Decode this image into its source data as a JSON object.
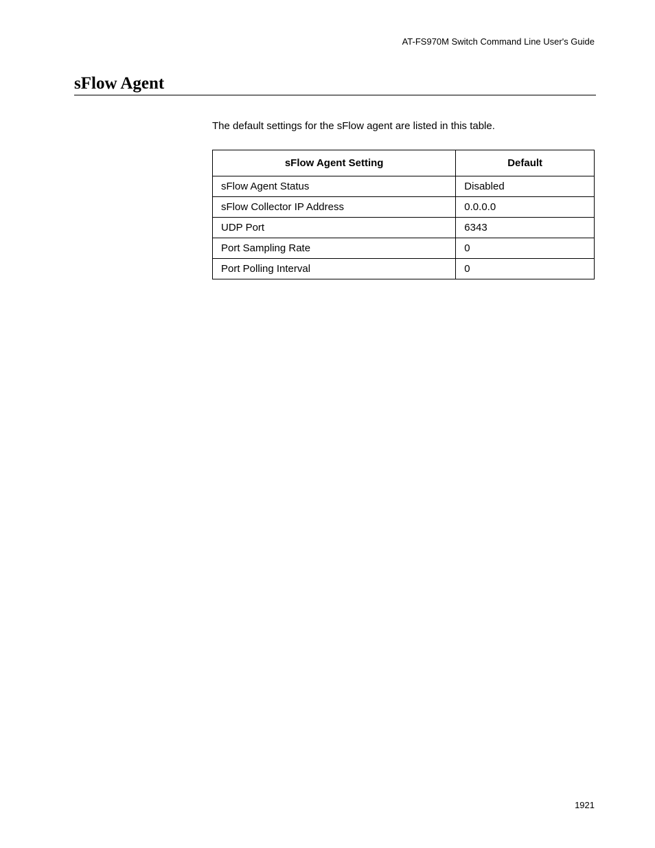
{
  "header": {
    "guide_title": "AT-FS970M Switch Command Line User's Guide"
  },
  "section": {
    "title": "sFlow Agent",
    "intro": "The default settings for the sFlow agent are listed in this table."
  },
  "table": {
    "columns": [
      "sFlow Agent Setting",
      "Default"
    ],
    "rows": [
      [
        "sFlow Agent Status",
        "Disabled"
      ],
      [
        "sFlow Collector IP Address",
        "0.0.0.0"
      ],
      [
        "UDP Port",
        "6343"
      ],
      [
        "Port Sampling Rate",
        "0"
      ],
      [
        "Port Polling Interval",
        "0"
      ]
    ],
    "header_fontsize": 15,
    "cell_fontsize": 15,
    "border_color": "#000000",
    "header_border_width": 1.5,
    "cell_border_width": 1,
    "col1_width": 355,
    "col2_width": 202,
    "total_width": 557
  },
  "footer": {
    "page_number": "1921"
  },
  "styling": {
    "background_color": "#ffffff",
    "text_color": "#000000",
    "title_font_family": "Times New Roman",
    "body_font_family": "Arial",
    "title_fontsize": 25,
    "header_fontsize": 13,
    "intro_fontsize": 15,
    "page_number_fontsize": 13
  }
}
